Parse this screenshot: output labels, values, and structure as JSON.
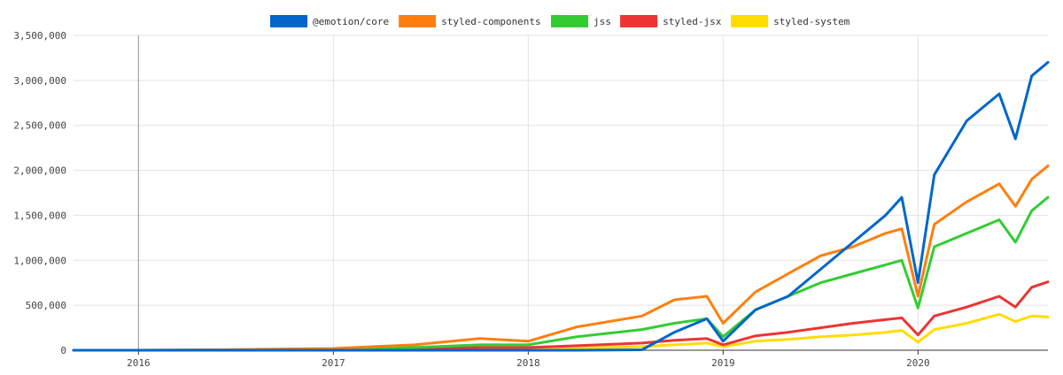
{
  "chart_data": {
    "type": "line",
    "title": "",
    "xlabel": "",
    "ylabel": "",
    "ylim": [
      0,
      3500000
    ],
    "xlim": [
      "2015-09",
      "2020-09"
    ],
    "grid": true,
    "legend": "top-center",
    "y_ticks": [
      0,
      500000,
      1000000,
      1500000,
      2000000,
      2500000,
      3000000,
      3500000
    ],
    "y_tick_labels": [
      "0",
      "500,000",
      "1,000,000",
      "1,500,000",
      "2,000,000",
      "2,500,000",
      "3,000,000",
      "3,500,000"
    ],
    "x_ticks": [
      "2016",
      "2017",
      "2018",
      "2019",
      "2020"
    ],
    "x": [
      "2015-09",
      "2016-01",
      "2016-06",
      "2017-01",
      "2017-06",
      "2017-10",
      "2018-01",
      "2018-04",
      "2018-08",
      "2018-10",
      "2018-12",
      "2019-01",
      "2019-03",
      "2019-05",
      "2019-07",
      "2019-09",
      "2019-11",
      "2019-12",
      "2020-01",
      "2020-02",
      "2020-04",
      "2020-06",
      "2020-07",
      "2020-08",
      "2020-09"
    ],
    "series": [
      {
        "name": "@emotion/core",
        "color": "#0066cc",
        "values": [
          0,
          0,
          0,
          0,
          0,
          0,
          0,
          0,
          5000,
          200000,
          350000,
          100000,
          450000,
          600000,
          900000,
          1200000,
          1500000,
          1700000,
          750000,
          1950000,
          2550000,
          2850000,
          2350000,
          3050000,
          3200000
        ]
      },
      {
        "name": "styled-components",
        "color": "#ff7f0e",
        "values": [
          0,
          0,
          5000,
          20000,
          60000,
          130000,
          100000,
          260000,
          380000,
          560000,
          600000,
          300000,
          650000,
          850000,
          1050000,
          1150000,
          1300000,
          1350000,
          600000,
          1400000,
          1650000,
          1850000,
          1600000,
          1900000,
          2050000
        ]
      },
      {
        "name": "jss",
        "color": "#33cc33",
        "values": [
          0,
          0,
          5000,
          10000,
          30000,
          60000,
          60000,
          150000,
          230000,
          300000,
          350000,
          150000,
          450000,
          600000,
          750000,
          850000,
          950000,
          1000000,
          470000,
          1150000,
          1300000,
          1450000,
          1200000,
          1550000,
          1700000
        ]
      },
      {
        "name": "styled-jsx",
        "color": "#ee3333",
        "values": [
          0,
          0,
          0,
          5000,
          15000,
          30000,
          30000,
          50000,
          80000,
          110000,
          130000,
          60000,
          160000,
          200000,
          250000,
          300000,
          340000,
          360000,
          170000,
          380000,
          480000,
          600000,
          480000,
          700000,
          760000
        ]
      },
      {
        "name": "styled-system",
        "color": "#ffdd00",
        "values": [
          0,
          0,
          0,
          0,
          5000,
          10000,
          15000,
          25000,
          40000,
          60000,
          80000,
          40000,
          100000,
          120000,
          150000,
          170000,
          200000,
          220000,
          90000,
          230000,
          300000,
          400000,
          320000,
          380000,
          370000
        ]
      }
    ]
  }
}
